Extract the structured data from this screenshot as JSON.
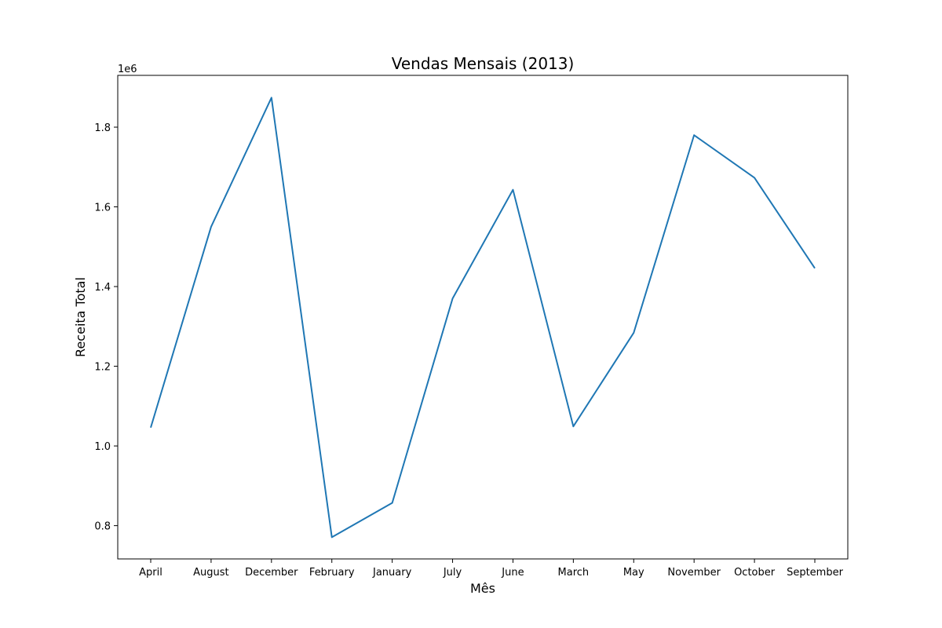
{
  "chart_data": {
    "type": "line",
    "title": "Vendas Mensais (2013)",
    "xlabel": "Mês",
    "ylabel": "Receita Total",
    "y_offset_label": "1e6",
    "y_scale": 1000000,
    "categories": [
      "April",
      "August",
      "December",
      "February",
      "January",
      "July",
      "June",
      "March",
      "May",
      "November",
      "October",
      "September"
    ],
    "series": [
      {
        "values": [
          1046000,
          1550000,
          1874000,
          771000,
          857000,
          1370000,
          1643000,
          1049000,
          1284000,
          1780000,
          1673000,
          1446000
        ],
        "color": "#1f77b4"
      }
    ],
    "ylim": [
      0.7165,
      1.93
    ],
    "yticks": [
      0.8,
      1.0,
      1.2,
      1.4,
      1.6,
      1.8
    ],
    "ytick_labels": [
      "0.8",
      "1.0",
      "1.2",
      "1.4",
      "1.6",
      "1.8"
    ],
    "grid": false,
    "legend": "none"
  }
}
